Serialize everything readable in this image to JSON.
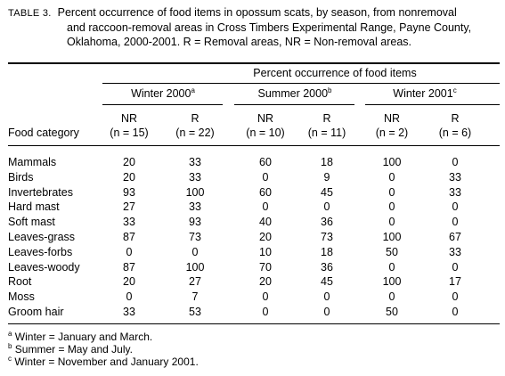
{
  "caption": {
    "label": "TABLE 3.",
    "line1": "Percent occurrence of food items in opossum scats, by season, from nonremoval",
    "line2": "and raccoon-removal areas in Cross Timbers Experimental Range, Payne County,",
    "line3": "Oklahoma, 2000-2001. R = Removal areas, NR = Non-removal areas."
  },
  "header": {
    "group_title": "Percent occurrence of food items",
    "seasons": [
      {
        "label": "Winter 2000",
        "note": "a"
      },
      {
        "label": "Summer 2000",
        "note": "b"
      },
      {
        "label": "Winter 2001",
        "note": "c"
      }
    ],
    "food_category": "Food category",
    "columns": [
      {
        "code": "NR",
        "n": "(n = 15)"
      },
      {
        "code": "R",
        "n": "(n = 22)"
      },
      {
        "code": "NR",
        "n": "(n = 10)"
      },
      {
        "code": "R",
        "n": "(n = 11)"
      },
      {
        "code": "NR",
        "n": "(n = 2)"
      },
      {
        "code": "R",
        "n": "(n = 6)"
      }
    ]
  },
  "rows": [
    {
      "category": "Mammals",
      "values": [
        "20",
        "33",
        "60",
        "18",
        "100",
        "0"
      ]
    },
    {
      "category": "Birds",
      "values": [
        "20",
        "33",
        "0",
        "9",
        "0",
        "33"
      ]
    },
    {
      "category": "Invertebrates",
      "values": [
        "93",
        "100",
        "60",
        "45",
        "0",
        "33"
      ]
    },
    {
      "category": "Hard mast",
      "values": [
        "27",
        "33",
        "0",
        "0",
        "0",
        "0"
      ]
    },
    {
      "category": "Soft mast",
      "values": [
        "33",
        "93",
        "40",
        "36",
        "0",
        "0"
      ]
    },
    {
      "category": "Leaves-grass",
      "values": [
        "87",
        "73",
        "20",
        "73",
        "100",
        "67"
      ]
    },
    {
      "category": "Leaves-forbs",
      "values": [
        "0",
        "0",
        "10",
        "18",
        "50",
        "33"
      ]
    },
    {
      "category": "Leaves-woody",
      "values": [
        "87",
        "100",
        "70",
        "36",
        "0",
        "0"
      ]
    },
    {
      "category": "Root",
      "values": [
        "20",
        "27",
        "20",
        "45",
        "100",
        "17"
      ]
    },
    {
      "category": "Moss",
      "values": [
        "0",
        "7",
        "0",
        "0",
        "0",
        "0"
      ]
    },
    {
      "category": "Groom hair",
      "values": [
        "33",
        "53",
        "0",
        "0",
        "50",
        "0"
      ]
    }
  ],
  "footnotes": [
    {
      "mark": "a",
      "text": "Winter = January and March."
    },
    {
      "mark": "b",
      "text": "Summer = May and July."
    },
    {
      "mark": "c",
      "text": "Winter =  November and January 2001."
    }
  ]
}
